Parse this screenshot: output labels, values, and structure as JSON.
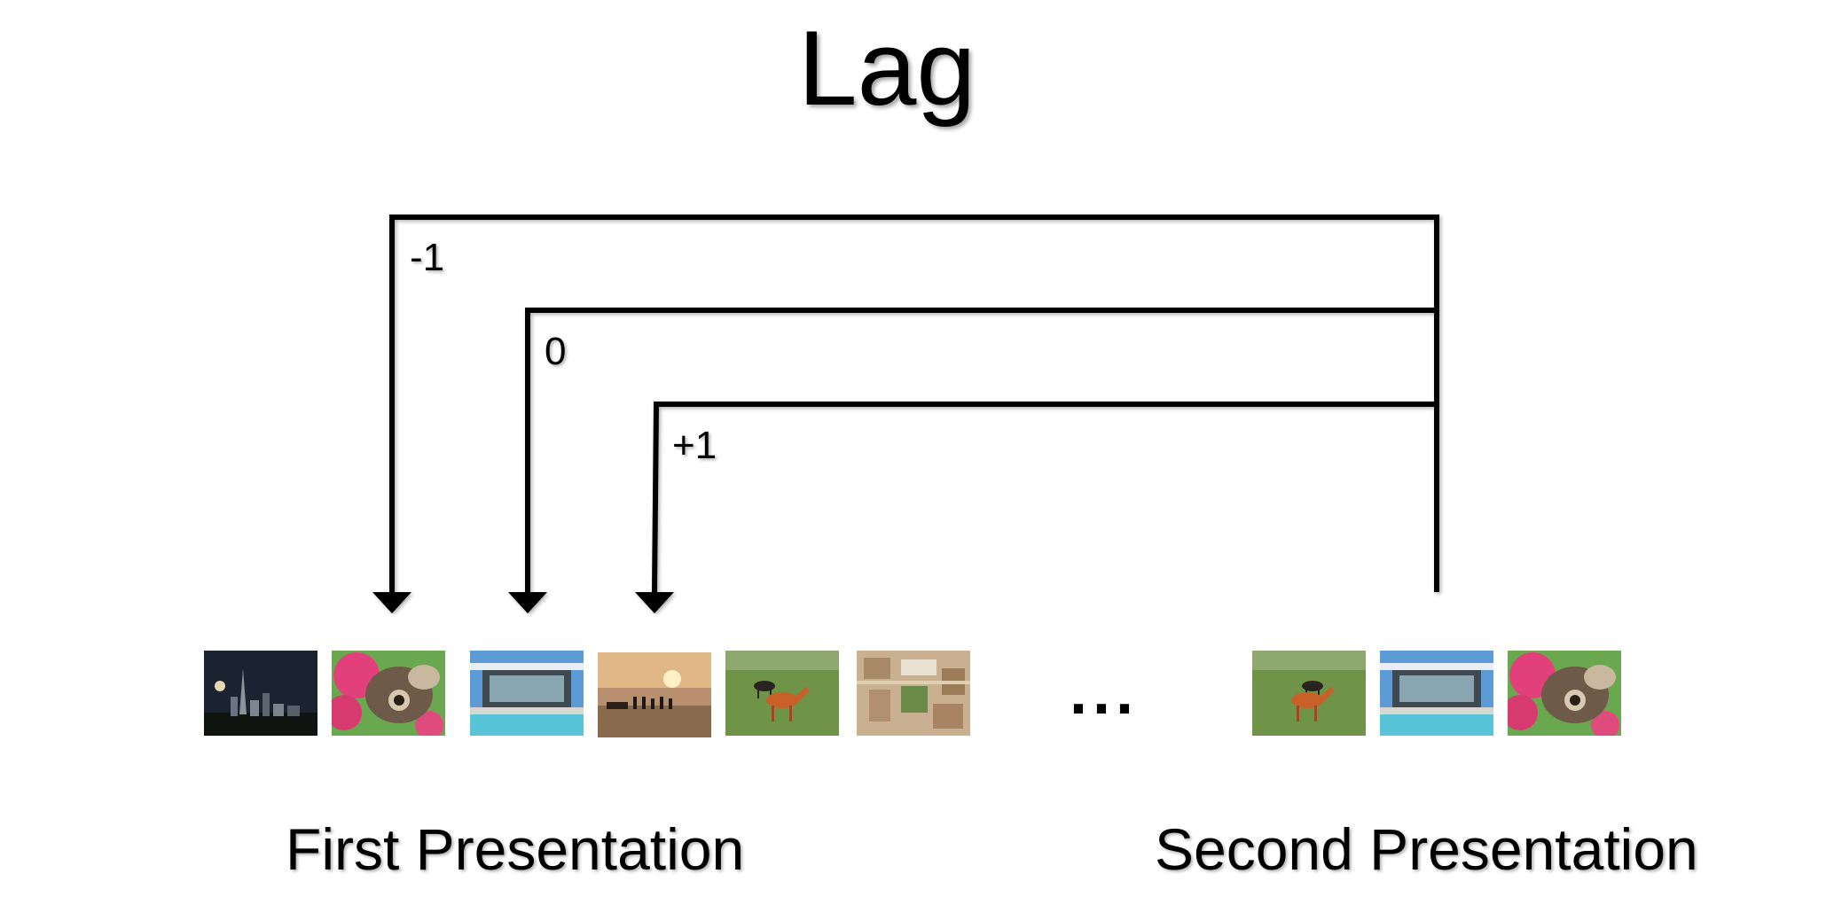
{
  "title": "Lag",
  "lags": [
    "-1",
    "0",
    "+1"
  ],
  "ellipsis": "...",
  "captions": {
    "first": "First Presentation",
    "second": "Second Presentation"
  },
  "images": {
    "first": [
      "city-skyline-night",
      "butterfly-pink-flowers",
      "pool-house",
      "beach-sunset-people",
      "horses-field",
      "aerial-village"
    ],
    "second": [
      "horses-field",
      "pool-house",
      "butterfly-pink-flowers"
    ]
  }
}
